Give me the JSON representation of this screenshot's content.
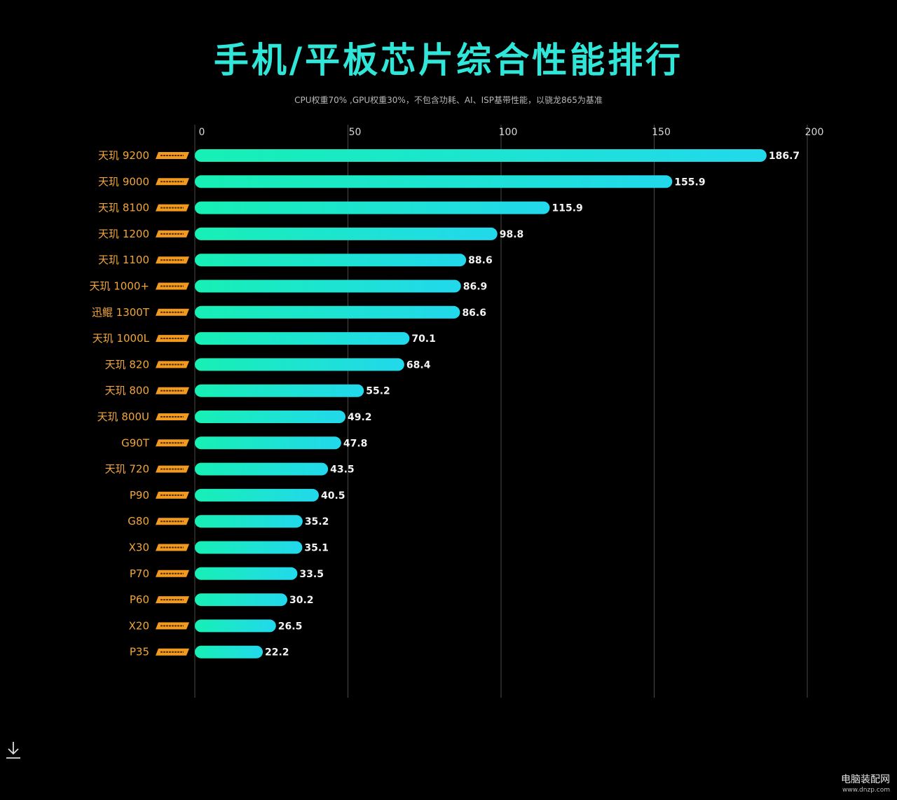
{
  "chart_data": {
    "type": "bar",
    "orientation": "horizontal",
    "title": "手机/平板芯片综合性能排行",
    "subtitle": "CPU权重70% ,GPU权重30%，不包含功耗、AI、ISP基带性能，以骁龙865为基准",
    "xlim": [
      0,
      200
    ],
    "xticks": [
      "0",
      "50",
      "100",
      "150",
      "200"
    ],
    "grid": true,
    "categories": [
      "天玑 9200",
      "天玑 9000",
      "天玑 8100",
      "天玑 1200",
      "天玑 1100",
      "天玑 1000+",
      "迅鲲 1300T",
      "天玑 1000L",
      "天玑 820",
      "天玑 800",
      "天玑 800U",
      "G90T",
      "天玑 720",
      "P90",
      "G80",
      "X30",
      "P70",
      "P60",
      "X20",
      "P35"
    ],
    "values": [
      186.7,
      155.9,
      115.9,
      98.8,
      88.6,
      86.9,
      86.6,
      70.1,
      68.4,
      55.2,
      49.2,
      47.8,
      43.5,
      40.5,
      35.2,
      35.1,
      33.5,
      30.2,
      26.5,
      22.2
    ],
    "value_labels": [
      "186.7",
      "155.9",
      "115.9",
      "98.8",
      "88.6",
      "86.9",
      "86.6",
      "70.1",
      "68.4",
      "55.2",
      "49.2",
      "47.8",
      "43.5",
      "40.5",
      "35.2",
      "35.1",
      "33.5",
      "30.2",
      "26.5",
      "22.2"
    ],
    "colors": {
      "title": "#2fe6d8",
      "bar_start": "#16f0b4",
      "bar_end": "#22d8ec",
      "category_label": "#f2a63a",
      "badge": "#f29a1e",
      "grid": "#4a4a4a"
    }
  },
  "icons": {
    "download": "download-icon",
    "brand_badge": "brand-badge-icon"
  },
  "footer": {
    "watermark": "电脑装配网",
    "url": "www.dnzp.com"
  }
}
